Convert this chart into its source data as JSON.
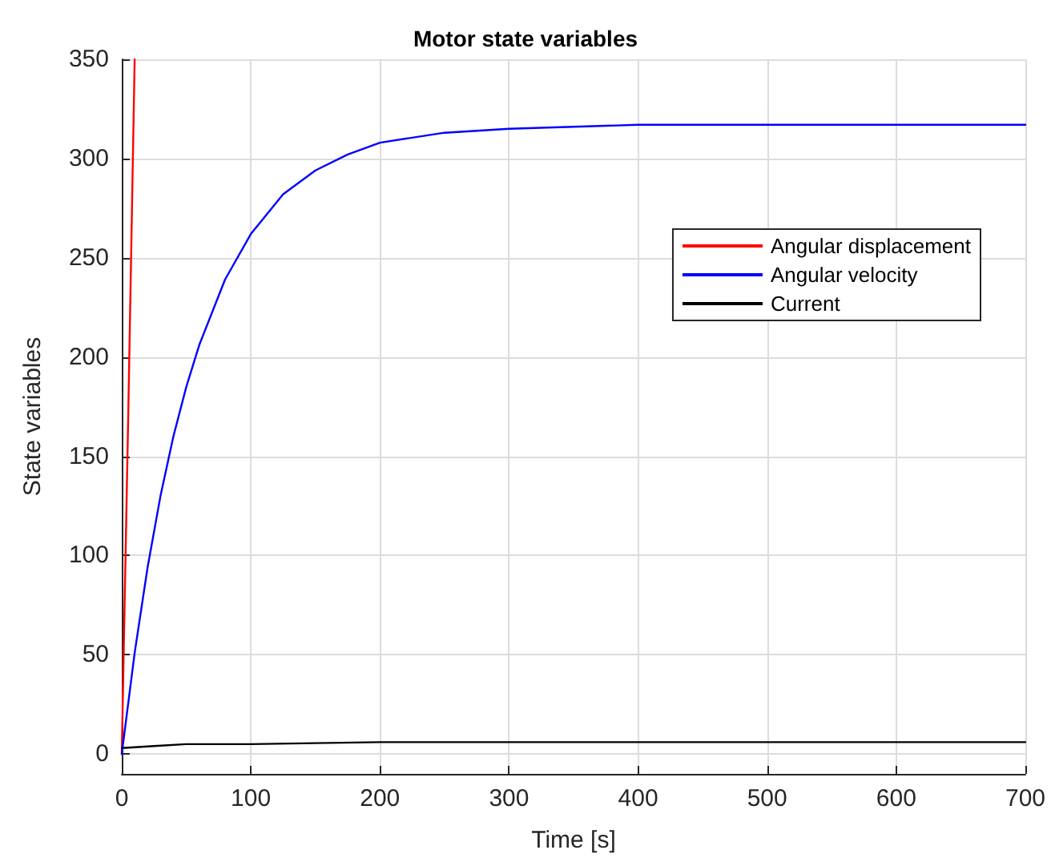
{
  "chart_data": {
    "type": "line",
    "title": "Motor state variables",
    "xlabel": "Time [s]",
    "ylabel": "State variables",
    "series": [
      {
        "name": "Angular displacement",
        "color": "#ff0000",
        "x": [
          0,
          5,
          10
        ],
        "values": [
          0,
          170,
          350
        ]
      },
      {
        "name": "Angular velocity",
        "color": "#0000ff",
        "x": [
          0,
          10,
          20,
          30,
          40,
          50,
          60,
          80,
          100,
          125,
          150,
          175,
          200,
          250,
          300,
          400,
          500,
          600,
          700
        ],
        "values": [
          0,
          51,
          94,
          130,
          160,
          185,
          206,
          239,
          262,
          282,
          294,
          302,
          308,
          313,
          315,
          317,
          317,
          317,
          317
        ]
      },
      {
        "name": "Current",
        "color": "#000000",
        "x": [
          0,
          25,
          50,
          100,
          200,
          300,
          700
        ],
        "values": [
          3,
          4,
          5,
          5,
          6,
          6,
          6
        ]
      }
    ],
    "xlim": [
      0,
      700
    ],
    "xticks": [
      0,
      100,
      200,
      300,
      400,
      500,
      600,
      700
    ],
    "ylim": [
      -10,
      350
    ],
    "yticks": [
      0,
      50,
      100,
      150,
      200,
      250,
      300,
      350
    ],
    "grid": true,
    "legend": "top right",
    "marker": "none",
    "line_style": "solid"
  }
}
